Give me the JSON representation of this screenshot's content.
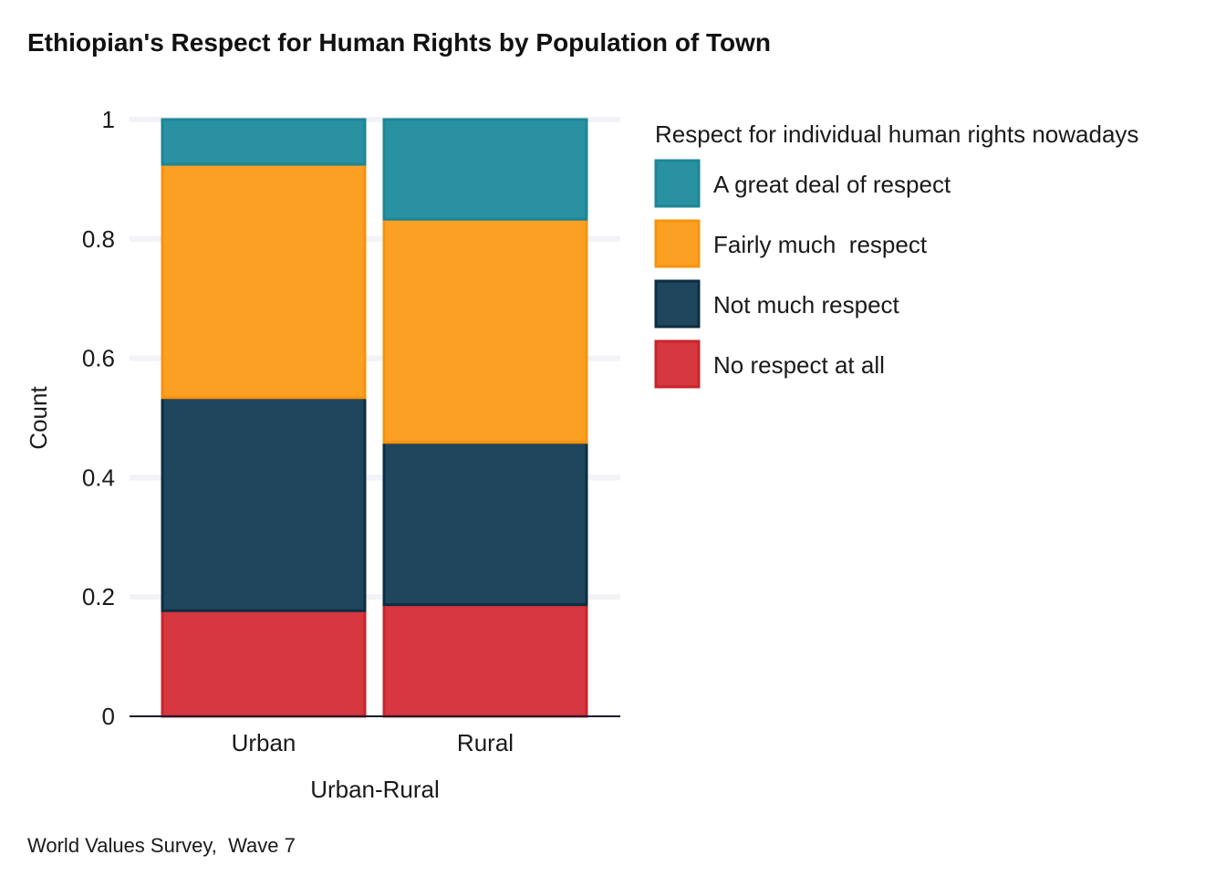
{
  "chart_data": {
    "type": "bar",
    "stacked": true,
    "title": "Ethiopian's Respect for Human Rights by Population of Town",
    "xlabel": "Urban-Rural",
    "ylabel": "Count",
    "ylim": [
      0,
      1
    ],
    "yticks": [
      0,
      0.2,
      0.4,
      0.6,
      0.8,
      1
    ],
    "ytick_labels": [
      "0",
      "0.2",
      "0.4",
      "0.6",
      "0.8",
      "1"
    ],
    "categories": [
      "Urban",
      "Rural"
    ],
    "series": [
      {
        "name": "No respect at all",
        "values": [
          0.177,
          0.187
        ],
        "fill": "#d7373f",
        "stroke": "#c8242d"
      },
      {
        "name": "Not much respect",
        "values": [
          0.357,
          0.272
        ],
        "fill": "#20465d",
        "stroke": "#0d2e42"
      },
      {
        "name": "Fairly much  respect",
        "values": [
          0.391,
          0.374
        ],
        "fill": "#fba023",
        "stroke": "#f6930f"
      },
      {
        "name": "A great deal of respect",
        "values": [
          0.075,
          0.167
        ],
        "fill": "#2a91a2",
        "stroke": "#1b8696"
      }
    ],
    "legend": {
      "title": "Respect for individual human rights nowadays",
      "position": "right",
      "order": [
        "A great deal of respect",
        "Fairly much  respect",
        "Not much respect",
        "No respect at all"
      ]
    },
    "grid": "horizontal-major",
    "caption": "World Values Survey,  Wave 7"
  }
}
